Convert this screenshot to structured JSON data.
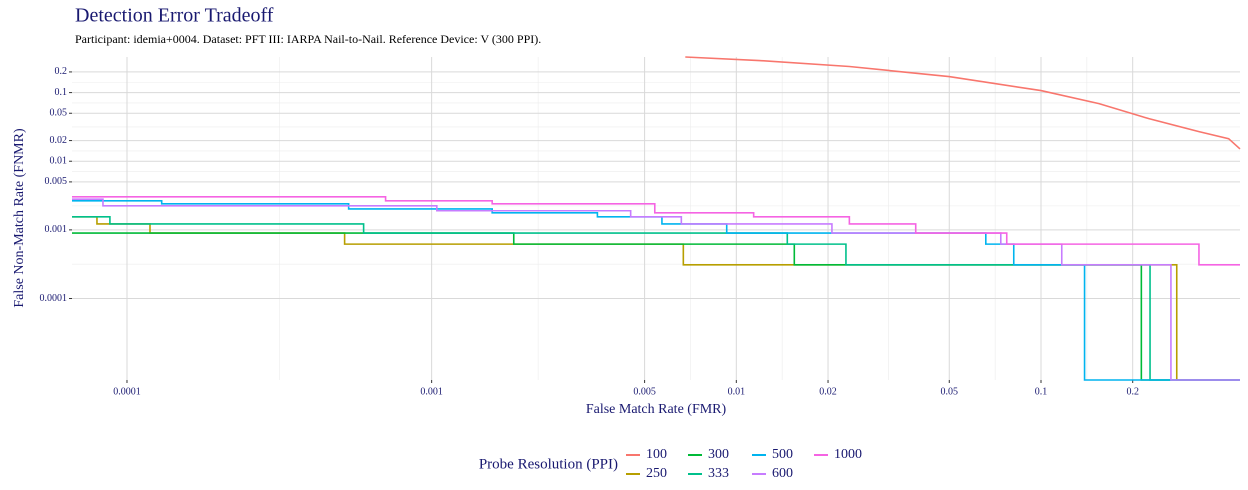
{
  "chart_data": {
    "type": "line",
    "title": "Detection Error Tradeoff",
    "subtitle": "Participant: idemia+0004. Dataset: PFT III: IARPA Nail-to-Nail. Reference Device: V (300 PPI).",
    "x_label": "False Match Rate (FMR)",
    "y_label": "False Non-Match Rate (FNMR)",
    "legend_title": "Probe Resolution (PPI)",
    "x_scale": "log",
    "y_scale": "log",
    "grid": true,
    "xlim": [
      6.6e-05,
      0.45
    ],
    "ylim": [
      6.5e-06,
      0.33
    ],
    "xticks": [
      0.0001,
      0.001,
      0.005,
      0.01,
      0.02,
      0.05,
      0.1,
      0.2
    ],
    "yticks": [
      0.0001,
      0.001,
      0.005,
      0.01,
      0.02,
      0.05,
      0.1,
      0.2
    ],
    "series": [
      {
        "name": "100",
        "color": "#F8766D",
        "drawstyle": "default",
        "x": [
          0.0068,
          0.0119,
          0.0235,
          0.0499,
          0.1,
          0.155,
          0.226,
          0.33,
          0.413,
          0.45
        ],
        "values": [
          0.33,
          0.293,
          0.24,
          0.171,
          0.107,
          0.069,
          0.0417,
          0.027,
          0.0213,
          0.0151
        ]
      },
      {
        "name": "250",
        "color": "#B79F00",
        "drawstyle": "steps-post",
        "x": [
          6.6e-05,
          7.97e-05,
          0.000119,
          0.000518,
          0.0067,
          0.279
        ],
        "values": [
          0.00155,
          0.00122,
          0.0009,
          0.00062,
          0.00031,
          6.5e-06
        ]
      },
      {
        "name": "300",
        "color": "#00BA38",
        "drawstyle": "steps-post",
        "x": [
          6.6e-05,
          0.00186,
          0.0155,
          0.2135
        ],
        "values": [
          0.0009,
          0.00062,
          0.00031,
          6.5e-06
        ]
      },
      {
        "name": "333",
        "color": "#00C08B",
        "drawstyle": "steps-post",
        "x": [
          6.6e-05,
          8.79e-05,
          0.000598,
          0.0147,
          0.0229,
          0.228
        ],
        "values": [
          0.00155,
          0.00122,
          0.0009,
          0.00062,
          0.00031,
          6.5e-06
        ]
      },
      {
        "name": "500",
        "color": "#00B4EF",
        "drawstyle": "steps-post",
        "x": [
          6.6e-05,
          0.00013,
          0.000534,
          0.00158,
          0.0035,
          0.0057,
          0.0093,
          0.0659,
          0.0814,
          0.139
        ],
        "values": [
          0.00265,
          0.0024,
          0.00202,
          0.00177,
          0.00155,
          0.00122,
          0.0009,
          0.00062,
          0.00031,
          6.5e-06
        ]
      },
      {
        "name": "600",
        "color": "#C77CFF",
        "drawstyle": "steps-post",
        "x": [
          6.6e-05,
          8.34e-05,
          0.00104,
          0.0045,
          0.0066,
          0.0206,
          0.0738,
          0.117,
          0.267
        ],
        "values": [
          0.0028,
          0.00224,
          0.0019,
          0.00155,
          0.00122,
          0.0009,
          0.00062,
          0.00031,
          6.5e-06
        ]
      },
      {
        "name": "1000",
        "color": "#F564E3",
        "drawstyle": "steps-post",
        "x": [
          6.6e-05,
          0.000706,
          0.00158,
          0.0054,
          0.0114,
          0.0235,
          0.0388,
          0.0772,
          0.33
        ],
        "values": [
          0.00303,
          0.00265,
          0.0024,
          0.00177,
          0.00155,
          0.00122,
          0.0009,
          0.00062,
          0.00031
        ]
      }
    ]
  }
}
